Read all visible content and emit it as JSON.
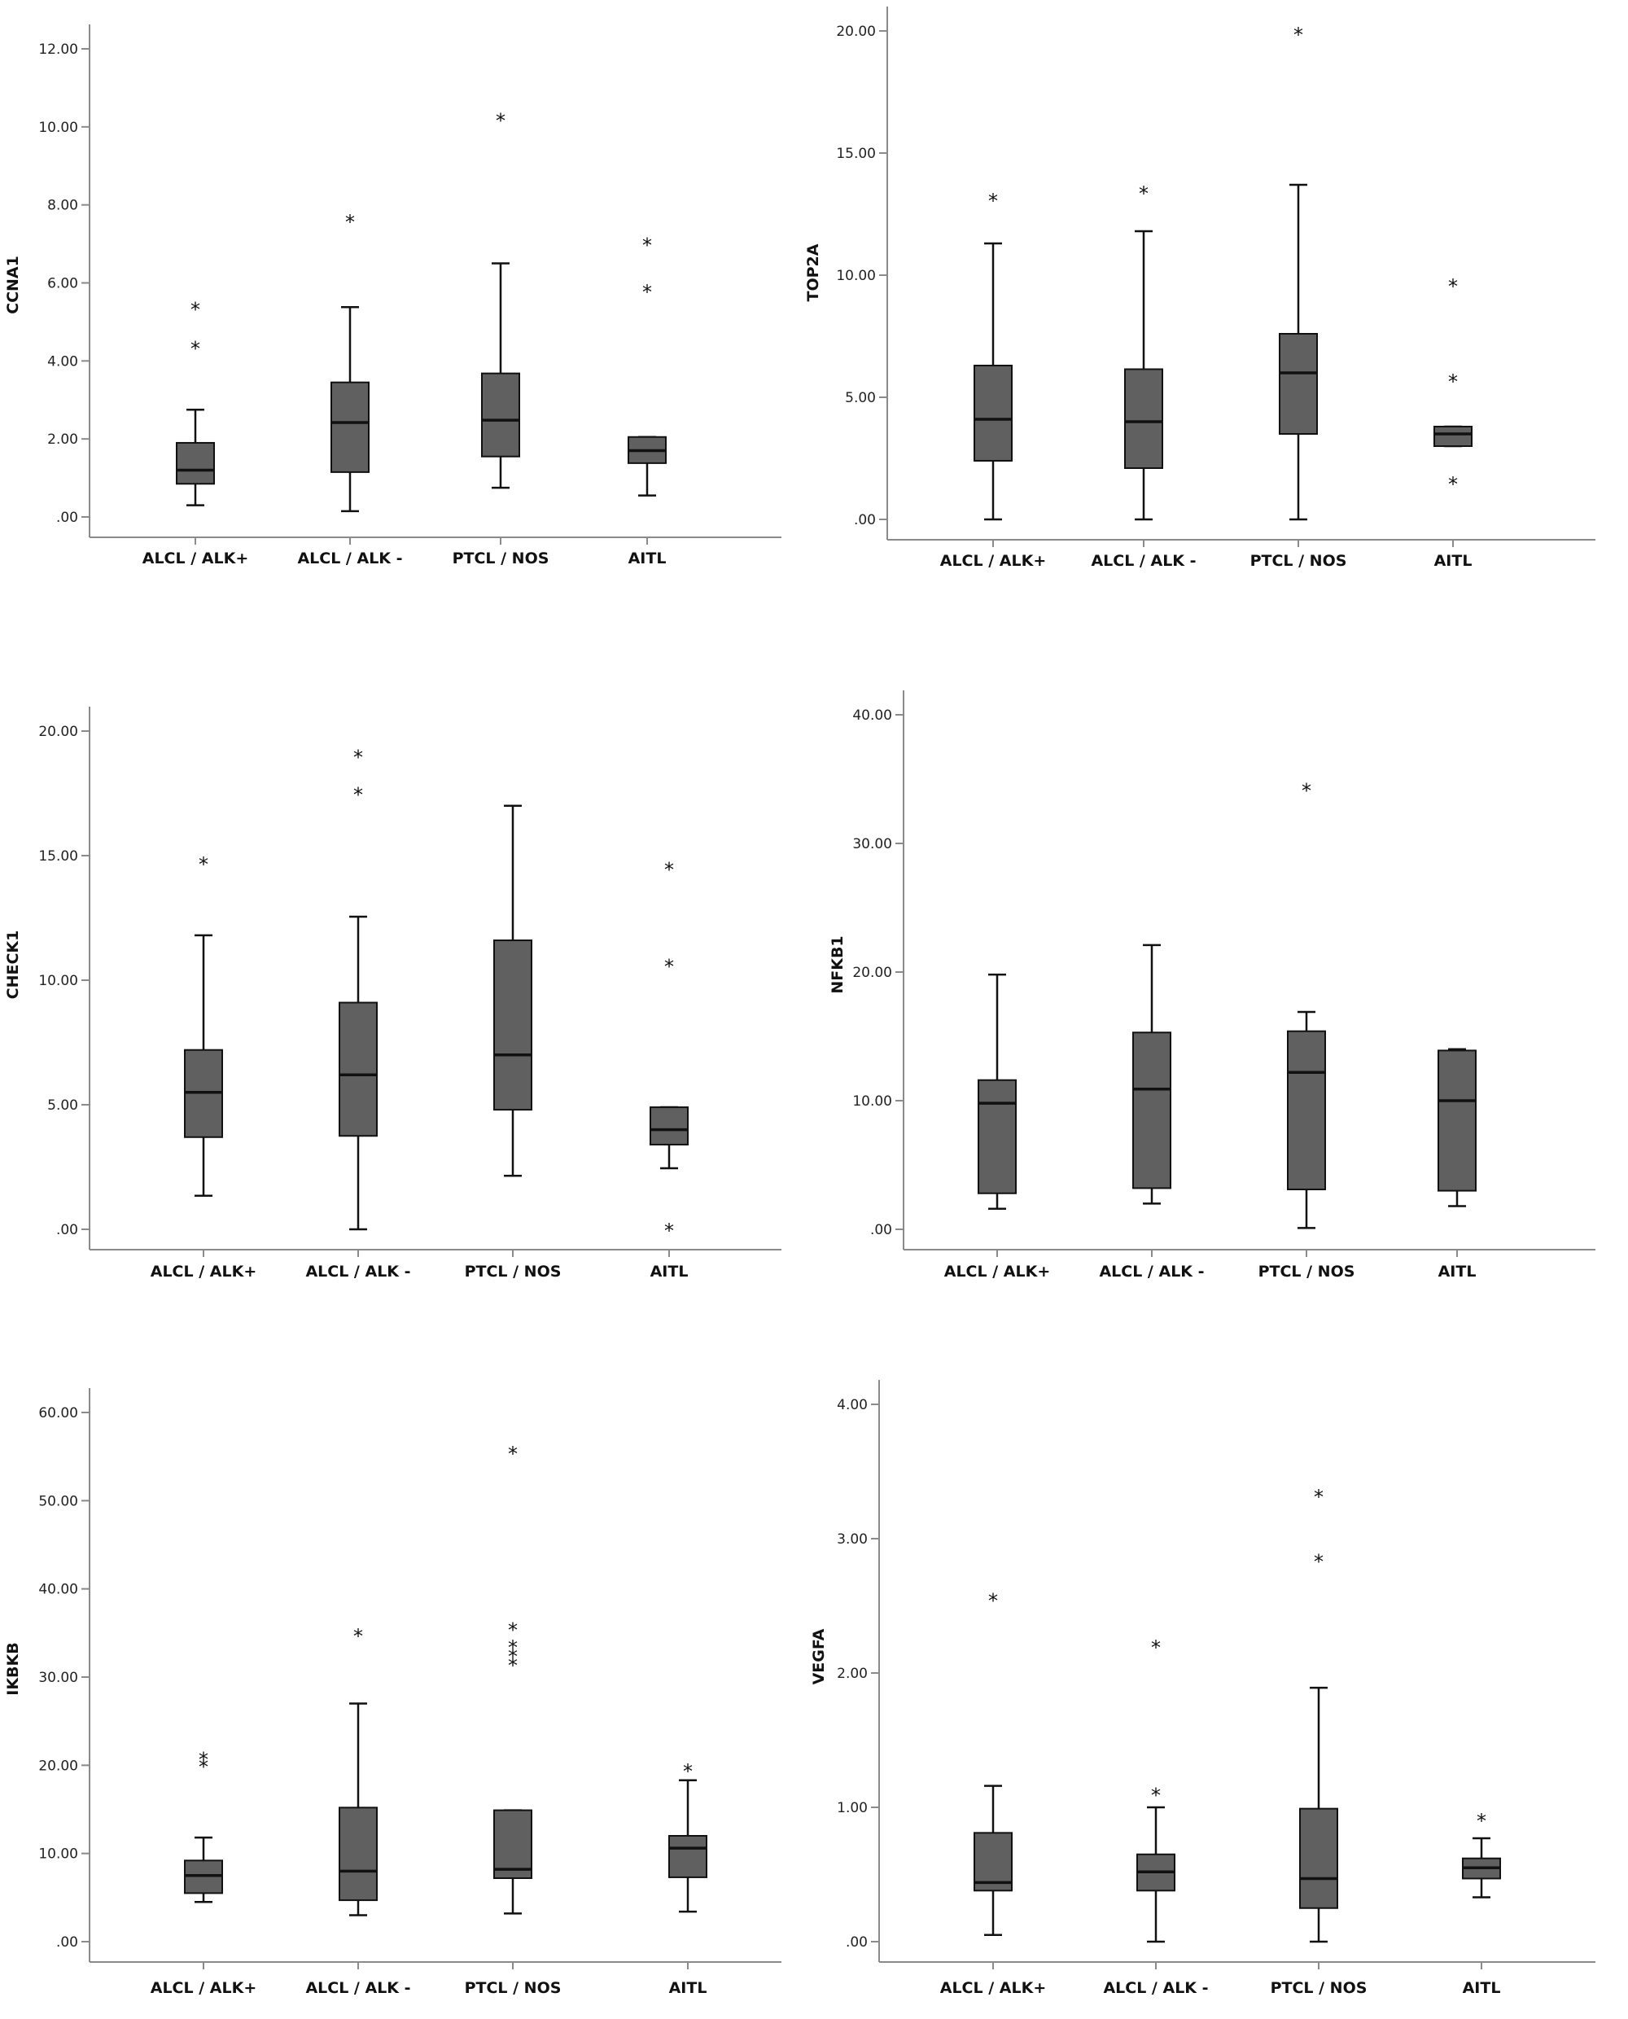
{
  "chart_data": [
    {
      "type": "boxplot",
      "ylabel": "CCNA1",
      "categories": [
        "ALCL / ALK+",
        "ALCL / ALK -",
        "PTCL / NOS",
        "AITL"
      ],
      "yticks": [
        ".00",
        "2.00",
        "4.00",
        "6.00",
        "8.00",
        "10.00",
        "12.00"
      ],
      "ylim": [
        0,
        12
      ],
      "boxes": [
        {
          "min": 0.3,
          "q1": 0.85,
          "median": 1.2,
          "q3": 1.9,
          "max": 2.75,
          "outliers": [
            4.35,
            5.35
          ]
        },
        {
          "min": 0.15,
          "q1": 1.15,
          "median": 2.42,
          "q3": 3.45,
          "max": 5.38,
          "outliers": [
            7.6
          ]
        },
        {
          "min": 0.75,
          "q1": 1.55,
          "median": 2.48,
          "q3": 3.68,
          "max": 6.5,
          "outliers": [
            10.2
          ]
        },
        {
          "min": 0.55,
          "q1": 1.38,
          "median": 1.7,
          "q3": 2.05,
          "max": 2.05,
          "outliers": [
            5.8,
            7.0
          ]
        }
      ]
    },
    {
      "type": "boxplot",
      "ylabel": "TOP2A",
      "categories": [
        "ALCL / ALK+",
        "ALCL / ALK -",
        "PTCL / NOS",
        "AITL"
      ],
      "yticks": [
        ".00",
        "5.00",
        "10.00",
        "15.00",
        "20.00"
      ],
      "ylim": [
        0,
        20
      ],
      "boxes": [
        {
          "min": 0,
          "q1": 2.4,
          "median": 4.1,
          "q3": 6.3,
          "max": 11.3,
          "outliers": [
            13.1
          ]
        },
        {
          "min": 0,
          "q1": 2.1,
          "median": 4.0,
          "q3": 6.15,
          "max": 11.8,
          "outliers": [
            13.4
          ]
        },
        {
          "min": 0,
          "q1": 3.5,
          "median": 6.0,
          "q3": 7.6,
          "max": 13.7,
          "outliers": [
            19.9
          ]
        },
        {
          "min": 3.0,
          "q1": 3.0,
          "median": 3.5,
          "q3": 3.8,
          "max": 3.8,
          "outliers": [
            1.5,
            5.7,
            9.6
          ]
        }
      ]
    },
    {
      "type": "boxplot",
      "ylabel": "CHECK1",
      "categories": [
        "ALCL / ALK+",
        "ALCL / ALK -",
        "PTCL / NOS",
        "AITL"
      ],
      "yticks": [
        ".00",
        "5.00",
        "10.00",
        "15.00",
        "20.00"
      ],
      "ylim": [
        0,
        20
      ],
      "boxes": [
        {
          "min": 1.35,
          "q1": 3.7,
          "median": 5.5,
          "q3": 7.2,
          "max": 11.8,
          "outliers": [
            14.7
          ]
        },
        {
          "min": 0,
          "q1": 3.75,
          "median": 6.2,
          "q3": 9.1,
          "max": 12.55,
          "outliers": [
            17.5,
            19.0
          ]
        },
        {
          "min": 2.15,
          "q1": 4.8,
          "median": 7.0,
          "q3": 11.6,
          "max": 17.0,
          "outliers": []
        },
        {
          "min": 2.45,
          "q1": 3.4,
          "median": 4.0,
          "q3": 4.9,
          "max": 4.9,
          "outliers": [
            0,
            10.6,
            14.5
          ]
        }
      ]
    },
    {
      "type": "boxplot",
      "ylabel": "NFKB1",
      "categories": [
        "ALCL / ALK+",
        "ALCL / ALK -",
        "PTCL / NOS",
        "AITL"
      ],
      "yticks": [
        ".00",
        "10.00",
        "20.00",
        "30.00",
        "40.00"
      ],
      "ylim": [
        0,
        40
      ],
      "boxes": [
        {
          "min": 1.6,
          "q1": 2.8,
          "median": 9.8,
          "q3": 11.6,
          "max": 19.8,
          "outliers": []
        },
        {
          "min": 2.0,
          "q1": 3.2,
          "median": 10.9,
          "q3": 15.3,
          "max": 22.1,
          "outliers": []
        },
        {
          "min": 0.1,
          "q1": 3.1,
          "median": 12.2,
          "q3": 15.4,
          "max": 16.9,
          "outliers": [
            34.2
          ]
        },
        {
          "min": 1.8,
          "q1": 3.0,
          "median": 10.0,
          "q3": 13.9,
          "max": 14.0,
          "outliers": []
        }
      ]
    },
    {
      "type": "boxplot",
      "ylabel": "IKBKB",
      "categories": [
        "ALCL / ALK+",
        "ALCL / ALK -",
        "PTCL / NOS",
        "AITL"
      ],
      "yticks": [
        ".00",
        "10.00",
        "20.00",
        "30.00",
        "40.00",
        "50.00",
        "60.00"
      ],
      "ylim": [
        0,
        60
      ],
      "boxes": [
        {
          "min": 4.5,
          "q1": 5.5,
          "median": 7.5,
          "q3": 9.2,
          "max": 11.8,
          "outliers": [
            20.0,
            20.8
          ]
        },
        {
          "min": 3.0,
          "q1": 4.7,
          "median": 8.0,
          "q3": 15.2,
          "max": 27.0,
          "outliers": [
            34.8
          ]
        },
        {
          "min": 3.2,
          "q1": 7.2,
          "median": 8.2,
          "q3": 14.9,
          "max": 14.9,
          "outliers": [
            31.5,
            32.5,
            33.5,
            35.5,
            55.5
          ]
        },
        {
          "min": 3.4,
          "q1": 7.3,
          "median": 10.6,
          "q3": 12.0,
          "max": 18.3,
          "outliers": [
            19.5
          ]
        }
      ]
    },
    {
      "type": "boxplot",
      "ylabel": "VEGFA",
      "categories": [
        "ALCL / ALK+",
        "ALCL / ALK -",
        "PTCL / NOS",
        "AITL"
      ],
      "yticks": [
        ".00",
        "1.00",
        "2.00",
        "3.00",
        "4.00"
      ],
      "ylim": [
        0,
        4
      ],
      "boxes": [
        {
          "min": 0.05,
          "q1": 0.38,
          "median": 0.44,
          "q3": 0.81,
          "max": 1.16,
          "outliers": [
            2.55
          ]
        },
        {
          "min": 0,
          "q1": 0.38,
          "median": 0.52,
          "q3": 0.65,
          "max": 1.0,
          "outliers": [
            1.1,
            2.2
          ]
        },
        {
          "min": 0,
          "q1": 0.25,
          "median": 0.47,
          "q3": 0.99,
          "max": 1.89,
          "outliers": [
            2.84,
            3.32
          ]
        },
        {
          "min": 0.33,
          "q1": 0.47,
          "median": 0.55,
          "q3": 0.62,
          "max": 0.77,
          "outliers": [
            0.91
          ]
        }
      ]
    }
  ],
  "colors": {
    "box_fill": "#606060",
    "line": "#111111",
    "axis": "#8a8a8a"
  }
}
